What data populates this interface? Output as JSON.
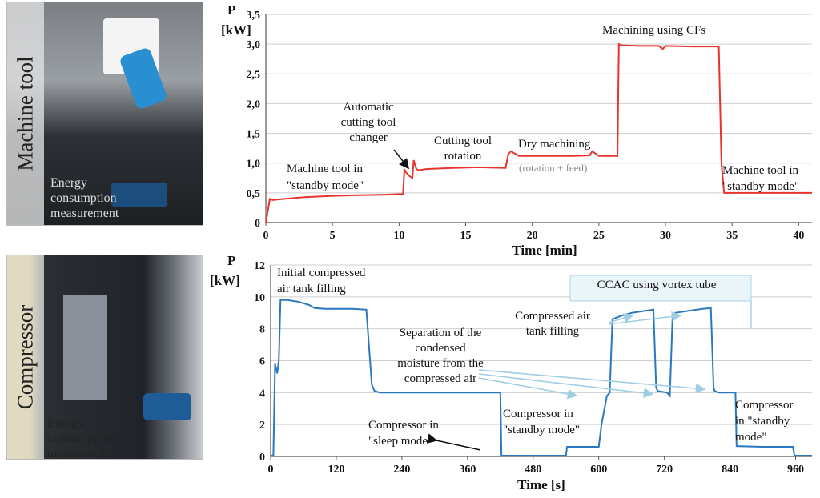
{
  "photos": [
    {
      "label": "Machine tool",
      "caption_lines": [
        "Energy",
        "consumption",
        "measurement"
      ]
    },
    {
      "label": "Compressor",
      "caption_lines": [
        "Energy",
        "consumption",
        "measurement"
      ]
    }
  ],
  "colors": {
    "machine_tool_line": "#e8342c",
    "compressor_line": "#2a78c0",
    "annotation_arrow": "#9fcde3",
    "grid": "#cfcfcf"
  },
  "chart_data": [
    {
      "type": "line",
      "title": "",
      "xlabel": "Time [min]",
      "ylabel": "P [kW]",
      "ylabel_lines": [
        "P",
        "[kW]"
      ],
      "xlim": [
        0,
        41
      ],
      "ylim": [
        0,
        3.5
      ],
      "xticks": [
        0,
        5,
        10,
        15,
        20,
        25,
        30,
        35,
        40
      ],
      "xtick_labels": [
        "0",
        "5",
        "10",
        "15",
        "20",
        "25",
        "30",
        "35",
        "40"
      ],
      "yticks": [
        0,
        0.5,
        1.0,
        1.5,
        2.0,
        2.5,
        3.0,
        3.5
      ],
      "ytick_labels": [
        "0",
        "0,5",
        "1,0",
        "1,5",
        "2,0",
        "2,5",
        "3,0",
        "3,5"
      ],
      "grid": true,
      "series": [
        {
          "x": [
            0,
            0.3,
            0.5,
            1,
            2,
            3,
            5,
            7,
            9,
            10.3,
            10.4,
            10.5,
            10.8,
            11.0,
            11.1,
            11.3,
            11.5,
            12,
            14,
            16,
            18,
            18.2,
            18.4,
            19,
            21,
            23,
            24.3,
            24.5,
            25,
            26.4,
            26.5,
            26.7,
            28,
            29.5,
            29.8,
            30,
            32,
            34,
            34.2,
            34.4,
            35,
            37,
            39,
            41
          ],
          "y": [
            0,
            0.4,
            0.38,
            0.39,
            0.41,
            0.43,
            0.45,
            0.46,
            0.47,
            0.48,
            0.9,
            0.85,
            0.78,
            0.75,
            1.05,
            0.9,
            0.88,
            0.9,
            0.92,
            0.93,
            0.92,
            1.15,
            1.2,
            1.12,
            1.12,
            1.12,
            1.13,
            1.2,
            1.12,
            1.12,
            3.0,
            2.98,
            2.97,
            2.97,
            2.92,
            2.97,
            2.96,
            2.96,
            1.0,
            0.5,
            0.5,
            0.5,
            0.5,
            0.5
          ]
        }
      ],
      "annotations": [
        {
          "lines": [
            "Machine tool in",
            "\"standby mode\""
          ]
        },
        {
          "lines": [
            "Automatic",
            "cutting tool",
            "changer"
          ]
        },
        {
          "lines": [
            "Cutting tool",
            "rotation"
          ]
        },
        {
          "lines": [
            "Dry machining"
          ]
        },
        {
          "lines": [
            "(rotation + feed)"
          ]
        },
        {
          "lines": [
            "Machining using CFs"
          ]
        },
        {
          "lines": [
            "Machine tool in",
            "\"standby mode\""
          ]
        }
      ]
    },
    {
      "type": "line",
      "title": "",
      "xlabel": "Time [s]",
      "ylabel": "P [kW]",
      "ylabel_lines": [
        "P",
        "[kW]"
      ],
      "xlim": [
        0,
        990
      ],
      "ylim": [
        0,
        12
      ],
      "xticks": [
        0,
        120,
        240,
        360,
        480,
        600,
        720,
        840,
        960
      ],
      "xtick_labels": [
        "0",
        "120",
        "240",
        "360",
        "480",
        "600",
        "720",
        "840",
        "960"
      ],
      "yticks": [
        0,
        2,
        4,
        6,
        8,
        10,
        12
      ],
      "ytick_labels": [
        "0",
        "2",
        "4",
        "6",
        "8",
        "10",
        "12"
      ],
      "grid": true,
      "series": [
        {
          "x": [
            0,
            5,
            8,
            12,
            15,
            18,
            30,
            50,
            70,
            80,
            100,
            150,
            175,
            185,
            190,
            200,
            250,
            300,
            350,
            400,
            420,
            422,
            480,
            540,
            542,
            560,
            600,
            605,
            615,
            620,
            625,
            640,
            660,
            680,
            700,
            705,
            708,
            725,
            730,
            735,
            740,
            760,
            780,
            790,
            805,
            810,
            812,
            820,
            840,
            850,
            852,
            900,
            955,
            958,
            990
          ],
          "y": [
            0,
            0.1,
            5.8,
            5.2,
            6.0,
            9.8,
            9.8,
            9.7,
            9.5,
            9.3,
            9.25,
            9.25,
            9.2,
            4.5,
            4.1,
            4.0,
            4.0,
            4.0,
            4.0,
            4.0,
            4.0,
            0.05,
            0.05,
            0.05,
            0.6,
            0.6,
            0.6,
            2.0,
            3.8,
            4.0,
            8.6,
            8.8,
            9.0,
            9.1,
            9.2,
            4.3,
            4.1,
            4.0,
            3.8,
            8.8,
            9.0,
            9.1,
            9.2,
            9.25,
            9.3,
            4.3,
            4.1,
            4.0,
            4.0,
            4.0,
            0.65,
            0.6,
            0.6,
            0.05,
            0.05
          ]
        }
      ],
      "annotations": [
        {
          "lines": [
            "Initial compressed",
            "air tank filling"
          ]
        },
        {
          "lines": [
            "CCAC using vortex tube"
          ]
        },
        {
          "lines": [
            "Compressed air",
            "tank filling"
          ]
        },
        {
          "lines": [
            "Separation of the",
            "condensed",
            "moisture from the",
            "compressed air"
          ]
        },
        {
          "lines": [
            "Compressor in",
            "\"sleep mode\""
          ]
        },
        {
          "lines": [
            "Compressor in",
            "\"standby mode\""
          ]
        },
        {
          "lines": [
            "Compressor",
            "in \"standby",
            "mode\""
          ]
        }
      ]
    }
  ]
}
